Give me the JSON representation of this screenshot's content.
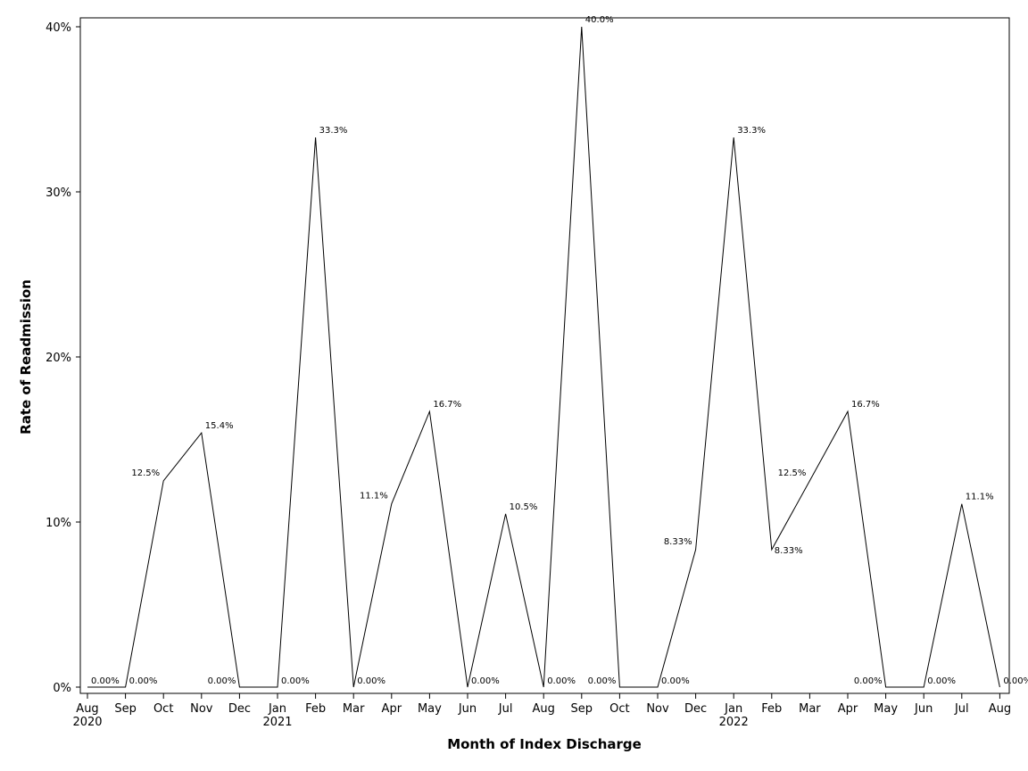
{
  "chart_data": {
    "type": "line",
    "xlabel": "Month of Index Discharge",
    "ylabel": "Rate of Readmission",
    "ylim": [
      0,
      40
    ],
    "y_ticks": [
      "0%",
      "10%",
      "20%",
      "30%",
      "40%"
    ],
    "y_tick_values": [
      0,
      10,
      20,
      30,
      40
    ],
    "x_months": [
      "Aug",
      "Sep",
      "Oct",
      "Nov",
      "Dec",
      "Jan",
      "Feb",
      "Mar",
      "Apr",
      "May",
      "Jun",
      "Jul",
      "Aug",
      "Sep",
      "Oct",
      "Nov",
      "Dec",
      "Jan",
      "Feb",
      "Mar",
      "Apr",
      "May",
      "Jun",
      "Jul",
      "Aug"
    ],
    "x_years": [
      {
        "index": 0,
        "label": "2020"
      },
      {
        "index": 5,
        "label": "2021"
      },
      {
        "index": 17,
        "label": "2022"
      }
    ],
    "x": [
      "2020-08",
      "2020-09",
      "2020-10",
      "2020-11",
      "2020-12",
      "2021-01",
      "2021-02",
      "2021-03",
      "2021-04",
      "2021-05",
      "2021-06",
      "2021-07",
      "2021-08",
      "2021-09",
      "2021-10",
      "2021-11",
      "2021-12",
      "2022-01",
      "2022-02",
      "2022-03",
      "2022-04",
      "2022-05",
      "2022-06",
      "2022-07",
      "2022-08"
    ],
    "values": [
      0,
      0,
      12.5,
      15.4,
      0,
      0,
      33.3,
      0,
      11.1,
      16.7,
      0,
      10.5,
      0,
      40.0,
      0,
      0,
      8.33,
      33.3,
      8.33,
      12.5,
      16.7,
      0,
      0,
      11.1,
      0
    ],
    "labels": [
      {
        "i": 0,
        "text": "0.00%"
      },
      {
        "i": 1,
        "text": "0.00%"
      },
      {
        "i": 2,
        "text": "12.5%"
      },
      {
        "i": 3,
        "text": "15.4%"
      },
      {
        "i": 4,
        "text": "0.00%"
      },
      {
        "i": 5,
        "text": "0.00%"
      },
      {
        "i": 6,
        "text": "33.3%"
      },
      {
        "i": 7,
        "text": "0.00%"
      },
      {
        "i": 8,
        "text": "11.1%"
      },
      {
        "i": 9,
        "text": "16.7%"
      },
      {
        "i": 10,
        "text": "0.00%"
      },
      {
        "i": 11,
        "text": "10.5%"
      },
      {
        "i": 12,
        "text": "0.00%"
      },
      {
        "i": 13,
        "text": "40.0%"
      },
      {
        "i": 14,
        "text": "0.00%"
      },
      {
        "i": 15,
        "text": "0.00%"
      },
      {
        "i": 16,
        "text": "8.33%"
      },
      {
        "i": 17,
        "text": "33.3%"
      },
      {
        "i": 18,
        "text": "8.33%"
      },
      {
        "i": 19,
        "text": "12.5%"
      },
      {
        "i": 20,
        "text": "16.7%"
      },
      {
        "i": 21,
        "text": "0.00%"
      },
      {
        "i": 22,
        "text": "0.00%"
      },
      {
        "i": 23,
        "text": "11.1%"
      },
      {
        "i": 24,
        "text": "0.00%"
      }
    ],
    "grid": false,
    "line_color": "#000000"
  }
}
